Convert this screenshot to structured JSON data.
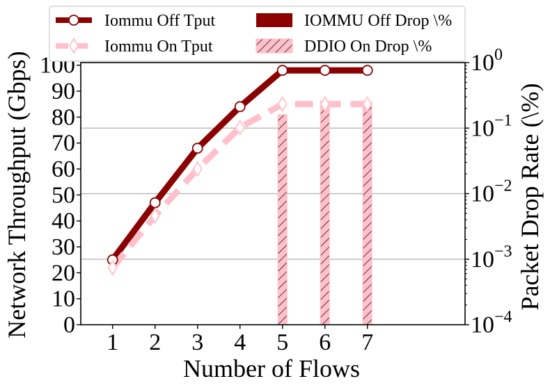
{
  "chart_data": {
    "type": "line",
    "xlabel": "Number of Flows",
    "ylabel": "Network Throughput (Gbps)",
    "y2label": "Packet Drop Rate (\\%)",
    "x": [
      1,
      2,
      3,
      4,
      5,
      6,
      7
    ],
    "x_tick_labels": [
      "1",
      "2",
      "3",
      "4",
      "5",
      "6",
      "7"
    ],
    "xlim": [
      0.25,
      9.3
    ],
    "ylim": [
      0,
      101
    ],
    "y_ticks": [
      0,
      10,
      20,
      30,
      40,
      50,
      60,
      70,
      80,
      90,
      100
    ],
    "y2_scale": "log",
    "y2lim": [
      0.0001,
      1
    ],
    "y2_tick_labels": [
      {
        "base": "10",
        "exp": "−4",
        "value": 0.0001
      },
      {
        "base": "10",
        "exp": "−3",
        "value": 0.001
      },
      {
        "base": "10",
        "exp": "−2",
        "value": 0.01
      },
      {
        "base": "10",
        "exp": "−1",
        "value": 0.1
      },
      {
        "base": "10",
        "exp": "0",
        "value": 1
      }
    ],
    "y2_grid": true,
    "legend_position": "top",
    "series": [
      {
        "name": "Iommu Off Tput",
        "kind": "line",
        "axis": "left",
        "color": "#8b0000",
        "marker": "circle",
        "values": [
          25,
          47,
          68,
          84,
          98,
          98,
          98
        ]
      },
      {
        "name": "Iommu On Tput",
        "kind": "line",
        "axis": "left",
        "color": "#ffc0cb",
        "marker": "diamond",
        "dashed": true,
        "values": [
          22,
          42,
          60,
          76,
          85,
          85,
          85
        ]
      },
      {
        "name": "IOMMU Off Drop \\%",
        "kind": "bar",
        "axis": "right",
        "color": "#8b0000",
        "values": [
          0,
          0,
          0,
          0,
          0,
          0,
          0
        ]
      },
      {
        "name": "DDIO On Drop \\%",
        "kind": "bar",
        "axis": "right",
        "color": "#ffc0cb",
        "hatch": "//",
        "values": [
          0,
          0,
          0,
          0,
          0.16,
          0.26,
          0.25
        ]
      }
    ]
  }
}
